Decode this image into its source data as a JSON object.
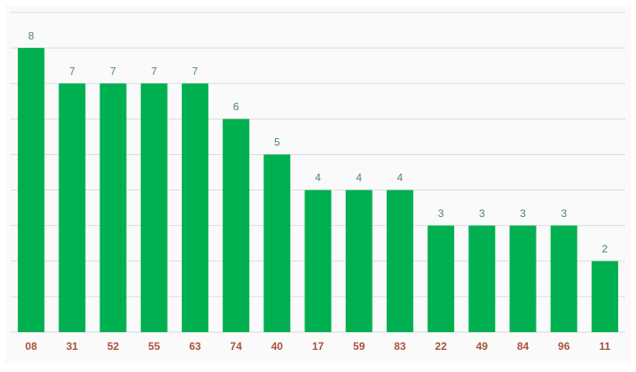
{
  "chart_data": {
    "type": "bar",
    "categories": [
      "08",
      "31",
      "52",
      "55",
      "63",
      "74",
      "40",
      "17",
      "59",
      "83",
      "22",
      "49",
      "84",
      "96",
      "11"
    ],
    "values": [
      8,
      7,
      7,
      7,
      7,
      6,
      5,
      4,
      4,
      4,
      3,
      3,
      3,
      3,
      2
    ],
    "color": "#00b050",
    "ylim": [
      0,
      9
    ],
    "yticks": [
      0,
      1,
      2,
      3,
      4,
      5,
      6,
      7,
      8,
      9
    ],
    "grid": true
  }
}
